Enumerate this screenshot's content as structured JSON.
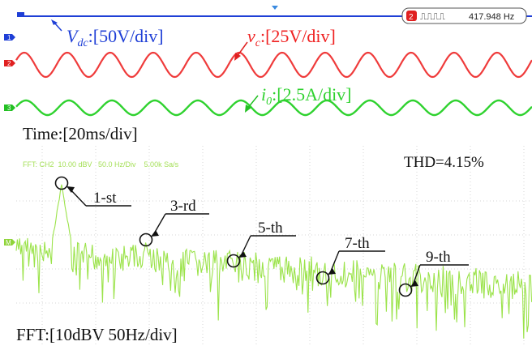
{
  "frequency_readout": {
    "channel": "2",
    "pulse_glyph": "⎍⎍⎍⎍",
    "value": "417.948 Hz"
  },
  "channel_markers": [
    "1",
    "2",
    "3"
  ],
  "fft_marker": "M",
  "time_label": "Time:[20ms/div]",
  "fft_header": "FFT: CH2  10.00 dBV   50.0 Hz/Div    5.00k Sa/s",
  "fft_scale_label": "FFT:[10dBV 50Hz/div]",
  "thd_label": "THD=4.15%",
  "colors": {
    "vdc": "#1f3fd6",
    "vc": "#ef3b3b",
    "i0": "#2fd22f",
    "fft": "#9be34a",
    "grid": "#c8c8c8",
    "marker_blue": "#1f3fd6",
    "marker_red": "#e02020",
    "marker_green": "#22c022"
  },
  "chart_data": [
    {
      "type": "line",
      "series": [
        {
          "name": "Vdc",
          "label_sub": "dc",
          "label_main": "V",
          "scale": ":[50V/div]",
          "waveform": "dc"
        },
        {
          "name": "vc",
          "label_sub": "c",
          "label_main": "v",
          "scale": ":[25V/div]",
          "waveform": "sine",
          "cycles_in_window": 12
        },
        {
          "name": "i0",
          "label_sub": "0",
          "label_main": "i",
          "scale": ":[2.5A/div]",
          "waveform": "sine",
          "cycles_in_window": 12
        }
      ],
      "x_unit": "ms/div",
      "x_scale": 20
    },
    {
      "type": "line",
      "title": "",
      "x_scale_hz_per_div": 50,
      "y_scale_dbv_per_div": 10,
      "harmonic_annotations": [
        "1-st",
        "3-rd",
        "5-th",
        "7-th",
        "9-th"
      ],
      "harmonic_peaks": [
        {
          "label": "1-st",
          "freq_hz": 50,
          "level_div_from_top": 2.2
        },
        {
          "label": "3-rd",
          "freq_hz": 150,
          "level_div_from_top": 3.7
        },
        {
          "label": "5-th",
          "freq_hz": 250,
          "level_div_from_top": 4.2
        },
        {
          "label": "7-th",
          "freq_hz": 350,
          "level_div_from_top": 4.6
        },
        {
          "label": "9-th",
          "freq_hz": 450,
          "level_div_from_top": 4.8
        }
      ]
    }
  ]
}
